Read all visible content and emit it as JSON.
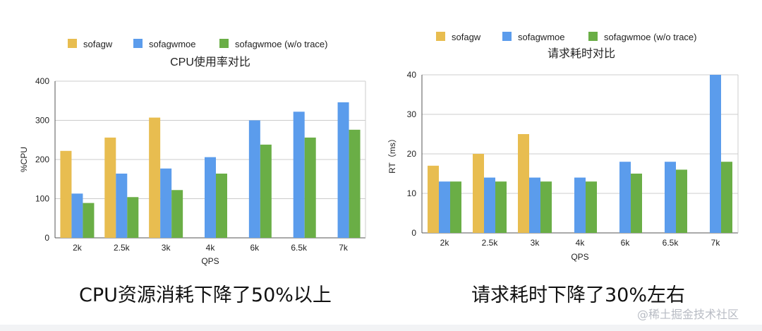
{
  "colors": {
    "sofagw": "#e8bd50",
    "sofagwmoe": "#5b9cec",
    "sofagwmoe_no_trace": "#6aae46"
  },
  "chart_data": [
    {
      "type": "bar",
      "title": "CPU使用率对比",
      "xlabel": "QPS",
      "ylabel": "%CPU",
      "ylim": [
        0,
        400
      ],
      "yticks": [
        0,
        100,
        200,
        300,
        400
      ],
      "grid": true,
      "legend": "top",
      "categories": [
        "2k",
        "2.5k",
        "3k",
        "4k",
        "6k",
        "6.5k",
        "7k"
      ],
      "series": [
        {
          "name": "sofagw",
          "values": [
            222,
            256,
            307,
            null,
            null,
            null,
            null
          ]
        },
        {
          "name": "sofagwmoe",
          "values": [
            113,
            164,
            177,
            206,
            300,
            322,
            346
          ]
        },
        {
          "name": "sofagwmoe (w/o trace)",
          "values": [
            89,
            104,
            122,
            164,
            238,
            256,
            276
          ]
        }
      ]
    },
    {
      "type": "bar",
      "title": "请求耗时对比",
      "xlabel": "QPS",
      "ylabel": "RT（ms）",
      "ylim": [
        0,
        40
      ],
      "yticks": [
        0,
        10,
        20,
        30,
        40
      ],
      "grid": true,
      "legend": "top",
      "categories": [
        "2k",
        "2.5k",
        "3k",
        "4k",
        "6k",
        "6.5k",
        "7k"
      ],
      "series": [
        {
          "name": "sofagw",
          "values": [
            17,
            20,
            25,
            null,
            null,
            null,
            null
          ]
        },
        {
          "name": "sofagwmoe",
          "values": [
            13,
            14,
            14,
            14,
            18,
            18,
            40
          ]
        },
        {
          "name": "sofagwmoe (w/o trace)",
          "values": [
            13,
            13,
            13,
            13,
            15,
            16,
            18
          ]
        }
      ]
    }
  ],
  "captions": {
    "left": "CPU资源消耗下降了50%以上",
    "right": "请求耗时下降了30%左右"
  },
  "watermark": "@稀土掘金技术社区"
}
